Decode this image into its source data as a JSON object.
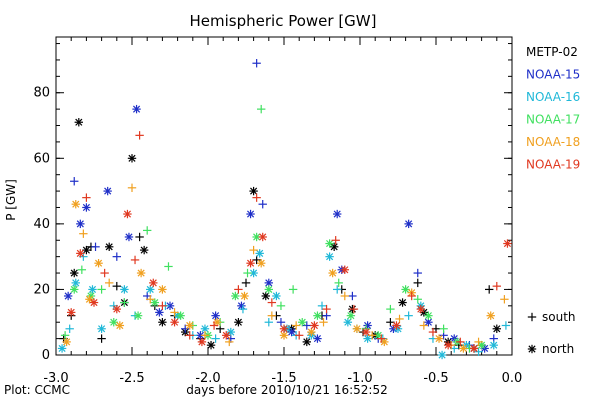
{
  "chart_data": {
    "type": "scatter",
    "title": "Hemispheric Power [GW]",
    "xlabel": "days before 2010/10/21 16:52:52",
    "ylabel": "P [GW]",
    "xlim": [
      -3.0,
      0.0
    ],
    "ylim": [
      0,
      97
    ],
    "x_ticks": [
      "-3.0",
      "-2.5",
      "-2.0",
      "-1.5",
      "-1.0",
      "-0.5",
      "0.0"
    ],
    "y_ticks": [
      "0",
      "20",
      "40",
      "60",
      "80"
    ],
    "grid": false,
    "credit": "Plot: CCMC",
    "legend": {
      "placement": "right-outside",
      "markers": [
        {
          "symbol": "+",
          "label": "south"
        },
        {
          "symbol": "*",
          "label": "north"
        }
      ]
    },
    "series": [
      {
        "name": "METP-02",
        "color": "#000000",
        "points": [
          [
            -2.95,
            5,
            "+"
          ],
          [
            -2.9,
            12,
            "+"
          ],
          [
            -2.88,
            25,
            "*"
          ],
          [
            -2.85,
            71,
            "*"
          ],
          [
            -2.8,
            32,
            "*"
          ],
          [
            -2.77,
            33,
            "+"
          ],
          [
            -2.7,
            5,
            "+"
          ],
          [
            -2.65,
            33,
            "*"
          ],
          [
            -2.6,
            21,
            "+"
          ],
          [
            -2.55,
            16,
            "*"
          ],
          [
            -2.5,
            60,
            "*"
          ],
          [
            -2.45,
            36,
            "+"
          ],
          [
            -2.42,
            32,
            "*"
          ],
          [
            -2.35,
            15,
            "+"
          ],
          [
            -2.3,
            10,
            "*"
          ],
          [
            -2.22,
            12,
            "+"
          ],
          [
            -2.15,
            7,
            "*"
          ],
          [
            -2.05,
            5,
            "+"
          ],
          [
            -1.98,
            3,
            "*"
          ],
          [
            -1.92,
            8,
            "+"
          ],
          [
            -1.8,
            10,
            "*"
          ],
          [
            -1.75,
            22,
            "+"
          ],
          [
            -1.7,
            50,
            "*"
          ],
          [
            -1.68,
            29,
            "+"
          ],
          [
            -1.62,
            18,
            "*"
          ],
          [
            -1.55,
            12,
            "+"
          ],
          [
            -1.45,
            8,
            "*"
          ],
          [
            -1.35,
            4,
            "*"
          ],
          [
            -1.25,
            12,
            "+"
          ],
          [
            -1.17,
            33,
            "*"
          ],
          [
            -1.12,
            20,
            "+"
          ],
          [
            -1.05,
            14,
            "*"
          ],
          [
            -0.98,
            7,
            "+"
          ],
          [
            -0.9,
            6,
            "*"
          ],
          [
            -0.8,
            10,
            "+"
          ],
          [
            -0.72,
            16,
            "*"
          ],
          [
            -0.62,
            22,
            "+"
          ],
          [
            -0.58,
            13,
            "*"
          ],
          [
            -0.5,
            8,
            "+"
          ],
          [
            -0.42,
            4,
            "*"
          ],
          [
            -0.35,
            3,
            "+"
          ],
          [
            -0.25,
            2,
            "*"
          ],
          [
            -0.2,
            3,
            "+"
          ],
          [
            -0.15,
            20,
            "+"
          ],
          [
            -0.1,
            8,
            "*"
          ]
        ]
      },
      {
        "name": "NOAA-15",
        "color": "#1f2fc8",
        "points": [
          [
            -2.92,
            18,
            "*"
          ],
          [
            -2.88,
            53,
            "+"
          ],
          [
            -2.84,
            40,
            "*"
          ],
          [
            -2.8,
            45,
            "*"
          ],
          [
            -2.74,
            33,
            "+"
          ],
          [
            -2.66,
            50,
            "*"
          ],
          [
            -2.6,
            30,
            "+"
          ],
          [
            -2.52,
            36,
            "*"
          ],
          [
            -2.47,
            75,
            "*"
          ],
          [
            -2.4,
            18,
            "+"
          ],
          [
            -2.32,
            13,
            "*"
          ],
          [
            -2.25,
            15,
            "*"
          ],
          [
            -2.15,
            8,
            "+"
          ],
          [
            -2.05,
            6,
            "*"
          ],
          [
            -1.95,
            12,
            "*"
          ],
          [
            -1.85,
            5,
            "+"
          ],
          [
            -1.78,
            15,
            "*"
          ],
          [
            -1.72,
            43,
            "*"
          ],
          [
            -1.68,
            89,
            "+"
          ],
          [
            -1.64,
            46,
            "+"
          ],
          [
            -1.6,
            22,
            "*"
          ],
          [
            -1.52,
            10,
            "+"
          ],
          [
            -1.45,
            7,
            "*"
          ],
          [
            -1.35,
            9,
            "+"
          ],
          [
            -1.28,
            5,
            "*"
          ],
          [
            -1.22,
            12,
            "+"
          ],
          [
            -1.15,
            43,
            "*"
          ],
          [
            -1.12,
            26,
            "*"
          ],
          [
            -1.05,
            18,
            "+"
          ],
          [
            -0.95,
            9,
            "*"
          ],
          [
            -0.88,
            5,
            "+"
          ],
          [
            -0.78,
            8,
            "*"
          ],
          [
            -0.68,
            40,
            "*"
          ],
          [
            -0.62,
            25,
            "+"
          ],
          [
            -0.55,
            10,
            "*"
          ],
          [
            -0.45,
            6,
            "+"
          ],
          [
            -0.38,
            5,
            "*"
          ],
          [
            -0.28,
            3,
            "+"
          ],
          [
            -0.18,
            2,
            "*"
          ],
          [
            -0.12,
            5,
            "+"
          ]
        ]
      },
      {
        "name": "NOAA-16",
        "color": "#20b8d8",
        "points": [
          [
            -2.96,
            2,
            "*"
          ],
          [
            -2.91,
            8,
            "+"
          ],
          [
            -2.87,
            22,
            "*"
          ],
          [
            -2.82,
            30,
            "+"
          ],
          [
            -2.76,
            20,
            "*"
          ],
          [
            -2.7,
            8,
            "*"
          ],
          [
            -2.62,
            15,
            "+"
          ],
          [
            -2.55,
            20,
            "*"
          ],
          [
            -2.48,
            12,
            "+"
          ],
          [
            -2.38,
            20,
            "*"
          ],
          [
            -2.28,
            15,
            "+"
          ],
          [
            -2.2,
            12,
            "*"
          ],
          [
            -2.1,
            6,
            "+"
          ],
          [
            -2.02,
            8,
            "*"
          ],
          [
            -1.95,
            5,
            "+"
          ],
          [
            -1.85,
            7,
            "*"
          ],
          [
            -1.77,
            14,
            "+"
          ],
          [
            -1.7,
            25,
            "*"
          ],
          [
            -1.66,
            31,
            "*"
          ],
          [
            -1.6,
            10,
            "+"
          ],
          [
            -1.55,
            18,
            "*"
          ],
          [
            -1.48,
            8,
            "*"
          ],
          [
            -1.42,
            6,
            "+"
          ],
          [
            -1.32,
            6,
            "*"
          ],
          [
            -1.25,
            15,
            "+"
          ],
          [
            -1.2,
            30,
            "*"
          ],
          [
            -1.15,
            20,
            "+"
          ],
          [
            -1.08,
            10,
            "*"
          ],
          [
            -1.02,
            8,
            "+"
          ],
          [
            -0.95,
            5,
            "*"
          ],
          [
            -0.85,
            5,
            "+"
          ],
          [
            -0.75,
            8,
            "*"
          ],
          [
            -0.68,
            12,
            "+"
          ],
          [
            -0.6,
            15,
            "*"
          ],
          [
            -0.52,
            5,
            "+"
          ],
          [
            -0.46,
            0,
            "*"
          ],
          [
            -0.38,
            2,
            "+"
          ],
          [
            -0.3,
            3,
            "*"
          ],
          [
            -0.22,
            1,
            "+"
          ],
          [
            -0.12,
            3,
            "*"
          ],
          [
            -0.04,
            9,
            "+"
          ]
        ]
      },
      {
        "name": "NOAA-17",
        "color": "#40e060",
        "points": [
          [
            -2.94,
            6,
            "+"
          ],
          [
            -2.88,
            20,
            "*"
          ],
          [
            -2.83,
            26,
            "+"
          ],
          [
            -2.77,
            18,
            "*"
          ],
          [
            -2.7,
            20,
            "+"
          ],
          [
            -2.62,
            10,
            "*"
          ],
          [
            -2.55,
            16,
            "+"
          ],
          [
            -2.46,
            12,
            "*"
          ],
          [
            -2.4,
            38,
            "+"
          ],
          [
            -2.35,
            16,
            "*"
          ],
          [
            -2.26,
            27,
            "+"
          ],
          [
            -2.18,
            12,
            "*"
          ],
          [
            -2.1,
            9,
            "+"
          ],
          [
            -2.0,
            6,
            "*"
          ],
          [
            -1.92,
            10,
            "+"
          ],
          [
            -1.82,
            18,
            "*"
          ],
          [
            -1.74,
            25,
            "+"
          ],
          [
            -1.68,
            36,
            "*"
          ],
          [
            -1.65,
            75,
            "+"
          ],
          [
            -1.6,
            20,
            "*"
          ],
          [
            -1.52,
            15,
            "+"
          ],
          [
            -1.44,
            20,
            "+"
          ],
          [
            -1.38,
            10,
            "*"
          ],
          [
            -1.28,
            12,
            "*"
          ],
          [
            -1.2,
            34,
            "*"
          ],
          [
            -1.14,
            22,
            "+"
          ],
          [
            -1.06,
            12,
            "*"
          ],
          [
            -0.96,
            8,
            "+"
          ],
          [
            -0.88,
            6,
            "*"
          ],
          [
            -0.8,
            14,
            "+"
          ],
          [
            -0.7,
            20,
            "*"
          ],
          [
            -0.62,
            17,
            "+"
          ],
          [
            -0.55,
            12,
            "*"
          ],
          [
            -0.45,
            8,
            "+"
          ],
          [
            -0.36,
            4,
            "*"
          ],
          [
            -0.28,
            2,
            "+"
          ],
          [
            -0.2,
            3,
            "*"
          ]
        ]
      },
      {
        "name": "NOAA-18",
        "color": "#f0a020",
        "points": [
          [
            -2.93,
            4,
            "*"
          ],
          [
            -2.87,
            46,
            "*"
          ],
          [
            -2.82,
            37,
            "+"
          ],
          [
            -2.78,
            17,
            "*"
          ],
          [
            -2.72,
            28,
            "*"
          ],
          [
            -2.65,
            22,
            "+"
          ],
          [
            -2.58,
            9,
            "*"
          ],
          [
            -2.5,
            51,
            "+"
          ],
          [
            -2.44,
            25,
            "*"
          ],
          [
            -2.38,
            17,
            "+"
          ],
          [
            -2.3,
            20,
            "*"
          ],
          [
            -2.22,
            13,
            "+"
          ],
          [
            -2.12,
            9,
            "*"
          ],
          [
            -2.02,
            6,
            "+"
          ],
          [
            -1.94,
            10,
            "*"
          ],
          [
            -1.86,
            4,
            "+"
          ],
          [
            -1.76,
            18,
            "*"
          ],
          [
            -1.7,
            32,
            "+"
          ],
          [
            -1.65,
            28,
            "*"
          ],
          [
            -1.58,
            12,
            "+"
          ],
          [
            -1.5,
            6,
            "*"
          ],
          [
            -1.42,
            9,
            "+"
          ],
          [
            -1.32,
            7,
            "*"
          ],
          [
            -1.24,
            10,
            "+"
          ],
          [
            -1.18,
            25,
            "*"
          ],
          [
            -1.1,
            18,
            "+"
          ],
          [
            -1.02,
            8,
            "*"
          ],
          [
            -0.92,
            6,
            "+"
          ],
          [
            -0.84,
            4,
            "*"
          ],
          [
            -0.74,
            11,
            "+"
          ],
          [
            -0.66,
            19,
            "*"
          ],
          [
            -0.58,
            9,
            "+"
          ],
          [
            -0.48,
            5,
            "*"
          ],
          [
            -0.4,
            3,
            "+"
          ],
          [
            -0.32,
            2,
            "*"
          ],
          [
            -0.22,
            4,
            "+"
          ],
          [
            -0.14,
            12,
            "*"
          ],
          [
            -0.05,
            17,
            "+"
          ]
        ]
      },
      {
        "name": "NOAA-19",
        "color": "#e03820",
        "points": [
          [
            -2.9,
            13,
            "*"
          ],
          [
            -2.84,
            31,
            "*"
          ],
          [
            -2.8,
            48,
            "+"
          ],
          [
            -2.75,
            16,
            "*"
          ],
          [
            -2.68,
            25,
            "+"
          ],
          [
            -2.6,
            14,
            "*"
          ],
          [
            -2.53,
            43,
            "*"
          ],
          [
            -2.48,
            29,
            "+"
          ],
          [
            -2.45,
            67,
            "+"
          ],
          [
            -2.36,
            22,
            "*"
          ],
          [
            -2.3,
            15,
            "+"
          ],
          [
            -2.22,
            10,
            "*"
          ],
          [
            -2.12,
            6,
            "+"
          ],
          [
            -2.04,
            4,
            "*"
          ],
          [
            -1.96,
            9,
            "+"
          ],
          [
            -1.88,
            6,
            "*"
          ],
          [
            -1.8,
            20,
            "+"
          ],
          [
            -1.72,
            28,
            "*"
          ],
          [
            -1.68,
            48,
            "+"
          ],
          [
            -1.64,
            36,
            "*"
          ],
          [
            -1.58,
            16,
            "+"
          ],
          [
            -1.5,
            8,
            "*"
          ],
          [
            -1.4,
            6,
            "+"
          ],
          [
            -1.3,
            9,
            "*"
          ],
          [
            -1.22,
            14,
            "+"
          ],
          [
            -1.16,
            35,
            "+"
          ],
          [
            -1.1,
            26,
            "*"
          ],
          [
            -1.04,
            14,
            "+"
          ],
          [
            -0.96,
            7,
            "*"
          ],
          [
            -0.86,
            5,
            "+"
          ],
          [
            -0.76,
            9,
            "*"
          ],
          [
            -0.66,
            18,
            "+"
          ],
          [
            -0.6,
            14,
            "*"
          ],
          [
            -0.52,
            7,
            "+"
          ],
          [
            -0.42,
            3,
            "*"
          ],
          [
            -0.34,
            4,
            "+"
          ],
          [
            -0.25,
            2,
            "*"
          ],
          [
            -0.1,
            21,
            "+"
          ],
          [
            -0.03,
            34,
            "*"
          ]
        ]
      }
    ]
  }
}
